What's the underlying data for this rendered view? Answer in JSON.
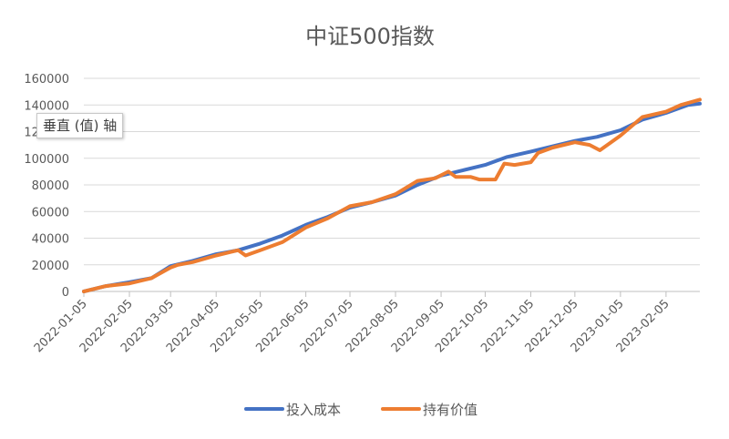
{
  "chart_data": {
    "type": "line",
    "title": "中证500指数",
    "ylabel": "垂直 (值) 轴",
    "ylim": [
      0,
      160000
    ],
    "yticks": [
      "0",
      "20000",
      "40000",
      "60000",
      "80000",
      "100000",
      "120000",
      "140000",
      "160000"
    ],
    "xticks": [
      "2022-01-05",
      "2022-02-05",
      "2022-03-05",
      "2022-04-05",
      "2022-05-05",
      "2022-06-05",
      "2022-07-05",
      "2022-08-05",
      "2022-09-05",
      "2022-10-05",
      "2022-11-05",
      "2022-12-05",
      "2023-01-05",
      "2023-02-05"
    ],
    "grid": true,
    "legend_position": "bottom",
    "series": [
      {
        "name": "投入成本",
        "color": "#4472C4",
        "points": [
          [
            "2022-01-05",
            0
          ],
          [
            "2022-01-20",
            4000
          ],
          [
            "2022-02-05",
            7000
          ],
          [
            "2022-02-20",
            10000
          ],
          [
            "2022-03-05",
            19000
          ],
          [
            "2022-03-20",
            23000
          ],
          [
            "2022-04-05",
            28000
          ],
          [
            "2022-04-20",
            31000
          ],
          [
            "2022-05-05",
            36000
          ],
          [
            "2022-05-20",
            42000
          ],
          [
            "2022-06-05",
            50000
          ],
          [
            "2022-06-20",
            56000
          ],
          [
            "2022-07-05",
            63000
          ],
          [
            "2022-07-20",
            67000
          ],
          [
            "2022-08-05",
            72000
          ],
          [
            "2022-08-20",
            80000
          ],
          [
            "2022-09-05",
            87000
          ],
          [
            "2022-09-20",
            91000
          ],
          [
            "2022-10-05",
            95000
          ],
          [
            "2022-10-20",
            101000
          ],
          [
            "2022-11-05",
            105000
          ],
          [
            "2022-11-20",
            109000
          ],
          [
            "2022-12-05",
            113000
          ],
          [
            "2022-12-20",
            116000
          ],
          [
            "2023-01-05",
            121000
          ],
          [
            "2023-01-20",
            129000
          ],
          [
            "2023-02-05",
            134000
          ],
          [
            "2023-02-20",
            140000
          ],
          [
            "2023-02-28",
            141000
          ]
        ]
      },
      {
        "name": "持有价值",
        "color": "#ED7D31",
        "points": [
          [
            "2022-01-05",
            0
          ],
          [
            "2022-01-20",
            4000
          ],
          [
            "2022-02-05",
            6000
          ],
          [
            "2022-02-20",
            10000
          ],
          [
            "2022-03-05",
            18000
          ],
          [
            "2022-03-10",
            20000
          ],
          [
            "2022-03-20",
            22000
          ],
          [
            "2022-04-05",
            27000
          ],
          [
            "2022-04-20",
            31000
          ],
          [
            "2022-04-25",
            27000
          ],
          [
            "2022-05-05",
            31000
          ],
          [
            "2022-05-20",
            37000
          ],
          [
            "2022-06-05",
            48000
          ],
          [
            "2022-06-20",
            55000
          ],
          [
            "2022-07-05",
            64000
          ],
          [
            "2022-07-20",
            67000
          ],
          [
            "2022-08-05",
            73000
          ],
          [
            "2022-08-20",
            83000
          ],
          [
            "2022-09-01",
            85000
          ],
          [
            "2022-09-10",
            90000
          ],
          [
            "2022-09-15",
            86000
          ],
          [
            "2022-09-25",
            86000
          ],
          [
            "2022-10-01",
            84000
          ],
          [
            "2022-10-12",
            84000
          ],
          [
            "2022-10-18",
            96000
          ],
          [
            "2022-10-25",
            95000
          ],
          [
            "2022-11-05",
            97000
          ],
          [
            "2022-11-10",
            104000
          ],
          [
            "2022-11-20",
            108000
          ],
          [
            "2022-12-05",
            112000
          ],
          [
            "2022-12-15",
            110000
          ],
          [
            "2022-12-22",
            106000
          ],
          [
            "2023-01-05",
            117000
          ],
          [
            "2023-01-20",
            131000
          ],
          [
            "2023-02-05",
            135000
          ],
          [
            "2023-02-15",
            140000
          ],
          [
            "2023-02-28",
            144000
          ]
        ]
      }
    ]
  }
}
